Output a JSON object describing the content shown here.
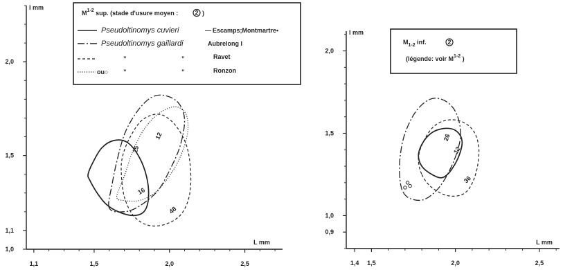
{
  "chart_data": [
    {
      "type": "line",
      "xlabel": "L mm",
      "ylabel": "l mm",
      "xlim": [
        1.05,
        2.75
      ],
      "ylim": [
        1.0,
        2.3
      ],
      "x_ticks": [
        {
          "value": 1.1,
          "label": "1,1"
        },
        {
          "value": 1.5,
          "label": "1,5"
        },
        {
          "value": 2.0,
          "label": "2,0"
        },
        {
          "value": 2.5,
          "label": "2,5"
        }
      ],
      "y_ticks": [
        {
          "value": 1.0,
          "label": "1,0"
        },
        {
          "value": 1.1,
          "label": "1,1"
        },
        {
          "value": 1.5,
          "label": "1,5"
        },
        {
          "value": 2.0,
          "label": "2,0"
        }
      ],
      "legend": {
        "placement": "top-center",
        "title": "M",
        "title_sup": "1-2",
        "title_rest": " sup.  (stade d'usure moyen : ",
        "title_mark": "2",
        "title_end": " )",
        "rows": [
          {
            "style": "solid",
            "species": "Pseudoltinomys cuvieri",
            "site_mark": "—",
            "site": "Escamps;Montmartre",
            "site_suffix": "•"
          },
          {
            "style": "dashdot",
            "species": "Pseudoltinomys gaillardi",
            "site_mark": "",
            "site": "Aubrelong I",
            "site_suffix": ""
          },
          {
            "style": "dashed",
            "species": "”",
            "site_mark": "”",
            "site": "Ravet",
            "site_suffix": ""
          },
          {
            "style": "dotted",
            "prefix": "ou○",
            "species": "”",
            "site_mark": "”",
            "site": "Ronzon",
            "site_suffix": ""
          }
        ]
      },
      "series": [
        {
          "style": "solid",
          "label": "16",
          "points": [
            [
              1.47,
              1.37
            ],
            [
              1.52,
              1.3
            ],
            [
              1.58,
              1.24
            ],
            [
              1.66,
              1.2
            ],
            [
              1.76,
              1.18
            ],
            [
              1.83,
              1.2
            ],
            [
              1.86,
              1.27
            ],
            [
              1.85,
              1.38
            ],
            [
              1.8,
              1.49
            ],
            [
              1.72,
              1.57
            ],
            [
              1.63,
              1.58
            ],
            [
              1.55,
              1.54
            ],
            [
              1.49,
              1.46
            ],
            [
              1.46,
              1.4
            ],
            [
              1.47,
              1.37
            ]
          ]
        },
        {
          "style": "dashdot",
          "label": "25",
          "points": [
            [
              1.6,
              1.22
            ],
            [
              1.62,
              1.35
            ],
            [
              1.66,
              1.5
            ],
            [
              1.71,
              1.63
            ],
            [
              1.79,
              1.74
            ],
            [
              1.88,
              1.81
            ],
            [
              1.97,
              1.82
            ],
            [
              2.06,
              1.78
            ],
            [
              2.1,
              1.69
            ],
            [
              2.07,
              1.55
            ],
            [
              2.0,
              1.42
            ],
            [
              1.92,
              1.31
            ],
            [
              1.8,
              1.23
            ],
            [
              1.7,
              1.2
            ],
            [
              1.6,
              1.22
            ]
          ]
        },
        {
          "style": "dashed",
          "label": "48",
          "points": [
            [
              1.68,
              1.41
            ],
            [
              1.7,
              1.28
            ],
            [
              1.76,
              1.18
            ],
            [
              1.85,
              1.13
            ],
            [
              1.96,
              1.13
            ],
            [
              2.07,
              1.18
            ],
            [
              2.13,
              1.28
            ],
            [
              2.14,
              1.42
            ],
            [
              2.11,
              1.56
            ],
            [
              2.03,
              1.67
            ],
            [
              1.93,
              1.72
            ],
            [
              1.82,
              1.69
            ],
            [
              1.74,
              1.6
            ],
            [
              1.69,
              1.5
            ],
            [
              1.68,
              1.41
            ]
          ]
        },
        {
          "style": "dotted",
          "label": "12",
          "points": [
            [
              1.65,
              1.28
            ],
            [
              1.7,
              1.39
            ],
            [
              1.76,
              1.53
            ],
            [
              1.84,
              1.65
            ],
            [
              1.94,
              1.73
            ],
            [
              2.04,
              1.76
            ],
            [
              2.11,
              1.72
            ],
            [
              2.12,
              1.62
            ],
            [
              2.07,
              1.49
            ],
            [
              1.99,
              1.38
            ],
            [
              1.9,
              1.3
            ],
            [
              1.8,
              1.26
            ],
            [
              1.7,
              1.26
            ],
            [
              1.65,
              1.28
            ]
          ]
        }
      ]
    },
    {
      "type": "line",
      "xlabel": "L mm",
      "ylabel": "l mm",
      "xlim": [
        1.35,
        2.62
      ],
      "ylim": [
        0.8,
        2.12
      ],
      "x_ticks": [
        {
          "value": 1.4,
          "label": "1,4"
        },
        {
          "value": 1.5,
          "label": "1,5"
        },
        {
          "value": 2.0,
          "label": "2,0"
        },
        {
          "value": 2.5,
          "label": "2,5"
        }
      ],
      "y_ticks": [
        {
          "value": 0.9,
          "label": "0,9"
        },
        {
          "value": 1.0,
          "label": "1,0"
        },
        {
          "value": 1.5,
          "label": "1,5"
        },
        {
          "value": 2.0,
          "label": "2,0"
        }
      ],
      "legend": {
        "placement": "top-center",
        "title": "M",
        "title_sub": "1-2",
        "title_rest": "  inf.   ",
        "title_mark": "2",
        "note": "(légende: voir M",
        "note_sup": "1-2",
        "note_end": " )"
      },
      "series": [
        {
          "style": "solid",
          "label": "26",
          "points": [
            [
              1.78,
              1.37
            ],
            [
              1.8,
              1.3
            ],
            [
              1.86,
              1.25
            ],
            [
              1.92,
              1.23
            ],
            [
              1.97,
              1.27
            ],
            [
              2.02,
              1.36
            ],
            [
              2.04,
              1.45
            ],
            [
              2.01,
              1.51
            ],
            [
              1.95,
              1.53
            ],
            [
              1.87,
              1.51
            ],
            [
              1.81,
              1.45
            ],
            [
              1.78,
              1.37
            ]
          ]
        },
        {
          "style": "dashed",
          "label": "36",
          "points": [
            [
              1.8,
              1.25
            ],
            [
              1.86,
              1.17
            ],
            [
              1.96,
              1.12
            ],
            [
              2.06,
              1.14
            ],
            [
              2.12,
              1.25
            ],
            [
              2.14,
              1.4
            ],
            [
              2.11,
              1.51
            ],
            [
              2.04,
              1.57
            ],
            [
              1.95,
              1.58
            ],
            [
              1.87,
              1.54
            ],
            [
              1.81,
              1.45
            ],
            [
              1.78,
              1.35
            ],
            [
              1.8,
              1.25
            ]
          ]
        },
        {
          "style": "dashdot",
          "label": "12",
          "points": [
            [
              1.69,
              1.14
            ],
            [
              1.74,
              1.1
            ],
            [
              1.82,
              1.1
            ],
            [
              1.91,
              1.18
            ],
            [
              1.99,
              1.33
            ],
            [
              2.03,
              1.48
            ],
            [
              2.01,
              1.61
            ],
            [
              1.95,
              1.69
            ],
            [
              1.86,
              1.71
            ],
            [
              1.77,
              1.64
            ],
            [
              1.7,
              1.5
            ],
            [
              1.67,
              1.35
            ],
            [
              1.67,
              1.22
            ],
            [
              1.69,
              1.14
            ]
          ]
        }
      ],
      "markers": {
        "style": "open-circles",
        "points": [
          [
            1.7,
            1.17
          ],
          [
            1.715,
            1.2
          ],
          [
            1.73,
            1.18
          ]
        ]
      }
    }
  ]
}
